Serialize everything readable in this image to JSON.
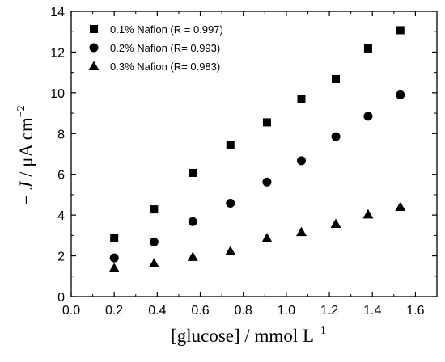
{
  "chart_data": {
    "type": "scatter",
    "xlabel": "[glucose] / mmol L",
    "xlabel_sup": "−1",
    "ylabel_prefix": "− ",
    "ylabel_var": "J",
    "ylabel_unit": " / μA cm",
    "ylabel_sup": "−2",
    "xlim": [
      0.0,
      1.7
    ],
    "ylim": [
      0,
      14
    ],
    "x_ticks": [
      "0.0",
      "0.2",
      "0.4",
      "0.6",
      "0.8",
      "1.0",
      "1.2",
      "1.4",
      "1.6"
    ],
    "y_ticks": [
      "0",
      "2",
      "4",
      "6",
      "8",
      "10",
      "12",
      "14"
    ],
    "legend_position": "top-left",
    "grid": false,
    "series": [
      {
        "name": "0.1% Nafion (R = 0.997)",
        "marker": "square",
        "color": "#000000",
        "x": [
          0.2,
          0.385,
          0.565,
          0.74,
          0.91,
          1.07,
          1.23,
          1.38,
          1.53
        ],
        "y": [
          2.87,
          4.28,
          6.07,
          7.42,
          8.55,
          9.7,
          10.67,
          12.18,
          13.07
        ]
      },
      {
        "name": "0.2% Nafion (R= 0.993)",
        "marker": "circle",
        "color": "#000000",
        "x": [
          0.2,
          0.385,
          0.565,
          0.74,
          0.91,
          1.07,
          1.23,
          1.38,
          1.53
        ],
        "y": [
          1.9,
          2.68,
          3.68,
          4.58,
          5.62,
          6.67,
          7.85,
          8.85,
          9.9
        ]
      },
      {
        "name": "0.3% Nafion (R= 0.983)",
        "marker": "triangle",
        "color": "#000000",
        "x": [
          0.2,
          0.385,
          0.565,
          0.74,
          0.91,
          1.07,
          1.23,
          1.38,
          1.53
        ],
        "y": [
          1.4,
          1.63,
          1.95,
          2.23,
          2.87,
          3.17,
          3.57,
          4.03,
          4.4
        ]
      }
    ]
  }
}
